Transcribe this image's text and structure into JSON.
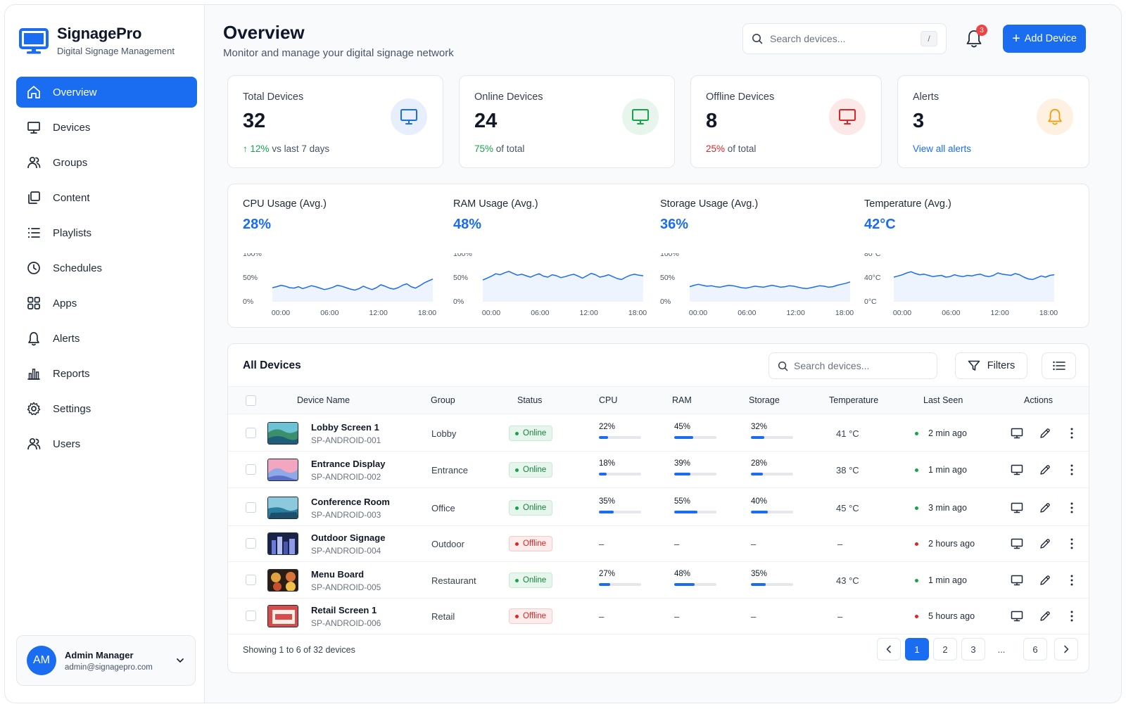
{
  "app": {
    "name": "SignagePro",
    "tagline": "Digital Signage Management"
  },
  "nav": [
    {
      "label": "Overview",
      "icon": "home-icon"
    },
    {
      "label": "Devices",
      "icon": "monitor-icon"
    },
    {
      "label": "Groups",
      "icon": "groups-icon"
    },
    {
      "label": "Content",
      "icon": "content-icon"
    },
    {
      "label": "Playlists",
      "icon": "list-icon"
    },
    {
      "label": "Schedules",
      "icon": "clock-icon"
    },
    {
      "label": "Apps",
      "icon": "apps-grid-icon"
    },
    {
      "label": "Alerts",
      "icon": "bell-icon"
    },
    {
      "label": "Reports",
      "icon": "bar-chart-icon"
    },
    {
      "label": "Settings",
      "icon": "gear-icon"
    },
    {
      "label": "Users",
      "icon": "users-icon"
    }
  ],
  "user": {
    "initials": "AM",
    "name": "Admin Manager",
    "email": "admin@signagepro.com"
  },
  "header": {
    "title": "Overview",
    "subtitle": "Monitor and manage your digital signage network",
    "search_placeholder": "Search devices...",
    "search_shortcut": "/",
    "notifications_count": "3",
    "add_label": "Add Device"
  },
  "stats": {
    "total": {
      "label": "Total Devices",
      "value": "32",
      "delta": "12%",
      "delta_text": "vs last 7 days"
    },
    "online": {
      "label": "Online Devices",
      "value": "24",
      "pct": "75%",
      "pct_text": "of total"
    },
    "offline": {
      "label": "Offline Devices",
      "value": "8",
      "pct": "25%",
      "pct_text": "of total"
    },
    "alerts": {
      "label": "Alerts",
      "value": "3",
      "link": "View all alerts"
    }
  },
  "colors": {
    "accent": "#1a6cf0",
    "success": "#16a34a",
    "danger": "#dc2626",
    "warning": "#f59e0b"
  },
  "metrics": [
    {
      "label": "CPU Usage (Avg.)",
      "value": "28%",
      "y_ticks": [
        "100%",
        "50%",
        "0%"
      ],
      "x_ticks": [
        "00:00",
        "06:00",
        "12:00",
        "18:00"
      ],
      "ymax": 100,
      "series": [
        28,
        30,
        33,
        31,
        28,
        27,
        30,
        26,
        29,
        32,
        30,
        27,
        24,
        26,
        29,
        33,
        31,
        28,
        25,
        23,
        26,
        31,
        27,
        24,
        28,
        34,
        31,
        27,
        25,
        28,
        33,
        36,
        30,
        27,
        32,
        38,
        42,
        46
      ]
    },
    {
      "label": "RAM Usage (Avg.)",
      "value": "48%",
      "y_ticks": [
        "100%",
        "50%",
        "0%"
      ],
      "x_ticks": [
        "00:00",
        "06:00",
        "12:00",
        "18:00"
      ],
      "ymax": 100,
      "series": [
        44,
        48,
        52,
        57,
        55,
        59,
        62,
        58,
        54,
        56,
        53,
        50,
        54,
        57,
        52,
        50,
        55,
        53,
        49,
        51,
        54,
        56,
        52,
        48,
        53,
        58,
        55,
        50,
        52,
        55,
        51,
        47,
        45,
        50,
        54,
        56,
        54,
        53
      ]
    },
    {
      "label": "Storage Usage (Avg.)",
      "value": "36%",
      "y_ticks": [
        "100%",
        "50%",
        "0%"
      ],
      "x_ticks": [
        "00:00",
        "06:00",
        "12:00",
        "18:00"
      ],
      "ymax": 100,
      "series": [
        30,
        33,
        35,
        33,
        31,
        32,
        30,
        29,
        31,
        33,
        32,
        30,
        28,
        27,
        29,
        31,
        30,
        29,
        31,
        33,
        31,
        29,
        30,
        32,
        31,
        29,
        27,
        26,
        28,
        30,
        32,
        31,
        29,
        30,
        33,
        35,
        37,
        40
      ]
    },
    {
      "label": "Temperature (Avg.)",
      "value": "42°C",
      "y_ticks": [
        "80°C",
        "40°C",
        "0°C"
      ],
      "x_ticks": [
        "00:00",
        "06:00",
        "12:00",
        "18:00"
      ],
      "ymax": 80,
      "series": [
        40,
        42,
        44,
        47,
        49,
        46,
        44,
        45,
        43,
        41,
        42,
        43,
        40,
        41,
        44,
        42,
        41,
        43,
        42,
        44,
        45,
        42,
        41,
        43,
        47,
        45,
        44,
        43,
        46,
        44,
        40,
        37,
        36,
        39,
        42,
        40,
        43,
        44
      ]
    }
  ],
  "devices": {
    "title": "All Devices",
    "search_placeholder": "Search devices...",
    "filters_label": "Filters",
    "columns": [
      "Device Name",
      "Group",
      "Status",
      "CPU",
      "RAM",
      "Storage",
      "Temperature",
      "Last Seen",
      "Actions"
    ],
    "rows": [
      {
        "name": "Lobby Screen 1",
        "id": "SP-ANDROID-001",
        "group": "Lobby",
        "status": "Online",
        "online": true,
        "cpu": "22%",
        "cpu_v": 22,
        "ram": "45%",
        "ram_v": 45,
        "storage": "32%",
        "storage_v": 32,
        "temp": "41 °C",
        "seen": "2 min ago"
      },
      {
        "name": "Entrance Display",
        "id": "SP-ANDROID-002",
        "group": "Entrance",
        "status": "Online",
        "online": true,
        "cpu": "18%",
        "cpu_v": 18,
        "ram": "39%",
        "ram_v": 39,
        "storage": "28%",
        "storage_v": 28,
        "temp": "38 °C",
        "seen": "1 min ago"
      },
      {
        "name": "Conference Room",
        "id": "SP-ANDROID-003",
        "group": "Office",
        "status": "Online",
        "online": true,
        "cpu": "35%",
        "cpu_v": 35,
        "ram": "55%",
        "ram_v": 55,
        "storage": "40%",
        "storage_v": 40,
        "temp": "45 °C",
        "seen": "3 min ago"
      },
      {
        "name": "Outdoor Signage",
        "id": "SP-ANDROID-004",
        "group": "Outdoor",
        "status": "Offline",
        "online": false,
        "cpu": "–",
        "ram": "–",
        "storage": "–",
        "temp": "–",
        "seen": "2 hours ago"
      },
      {
        "name": "Menu Board",
        "id": "SP-ANDROID-005",
        "group": "Restaurant",
        "status": "Online",
        "online": true,
        "cpu": "27%",
        "cpu_v": 27,
        "ram": "48%",
        "ram_v": 48,
        "storage": "35%",
        "storage_v": 35,
        "temp": "43 °C",
        "seen": "1 min ago"
      },
      {
        "name": "Retail Screen 1",
        "id": "SP-ANDROID-006",
        "group": "Retail",
        "status": "Offline",
        "online": false,
        "cpu": "–",
        "ram": "–",
        "storage": "–",
        "temp": "–",
        "seen": "5 hours ago"
      }
    ],
    "showing": "Showing 1 to 6 of 32 devices",
    "pages": [
      "1",
      "2",
      "3",
      "...",
      "6"
    ]
  }
}
